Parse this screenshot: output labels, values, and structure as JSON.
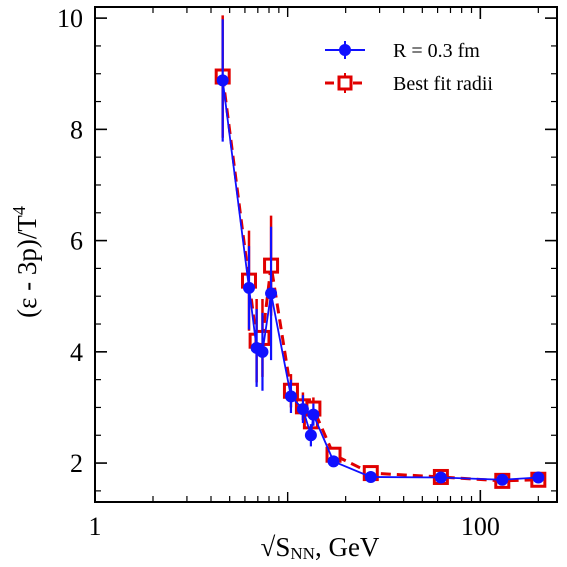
{
  "chart_data": {
    "type": "line",
    "xlabel": "√S",
    "xlabel_sub": "NN",
    "xlabel_suffix": ", GeV",
    "ylabel": "(ε - 3p)/T",
    "ylabel_sup": "4",
    "xscale": "log",
    "xlim": [
      1,
      250
    ],
    "ylim": [
      1.3,
      10.2
    ],
    "xticks": [
      {
        "value": 1,
        "label": "1"
      },
      {
        "value": 100,
        "label": "100"
      }
    ],
    "yticks": [
      {
        "value": 2,
        "label": "2"
      },
      {
        "value": 4,
        "label": "4"
      },
      {
        "value": 6,
        "label": "6"
      },
      {
        "value": 8,
        "label": "8"
      },
      {
        "value": 10,
        "label": "10"
      }
    ],
    "legend_position": "top-right",
    "series": [
      {
        "name": "R = 0.3 fm",
        "color": "#1010ff",
        "marker": "circle",
        "line": "solid",
        "points": [
          {
            "x": 4.6,
            "y": 8.88,
            "yerr": 1.1
          },
          {
            "x": 6.3,
            "y": 5.15,
            "yerr": 0.75
          },
          {
            "x": 6.9,
            "y": 4.07,
            "yerr": 0.7
          },
          {
            "x": 7.4,
            "y": 4.0,
            "yerr": 0.7
          },
          {
            "x": 8.2,
            "y": 5.05,
            "yerr": 1.2
          },
          {
            "x": 10.4,
            "y": 3.2,
            "yerr": 0.3
          },
          {
            "x": 12.0,
            "y": 2.97,
            "yerr": 0.25
          },
          {
            "x": 13.2,
            "y": 2.5,
            "yerr": 0.2
          },
          {
            "x": 13.6,
            "y": 2.87,
            "yerr": 0.2
          },
          {
            "x": 17.3,
            "y": 2.03,
            "yerr": 0.1
          },
          {
            "x": 27.0,
            "y": 1.75,
            "yerr": 0.08
          },
          {
            "x": 62.4,
            "y": 1.74,
            "yerr": 0.08
          },
          {
            "x": 130,
            "y": 1.7,
            "yerr": 0.06
          },
          {
            "x": 200,
            "y": 1.74,
            "yerr": 0.06
          }
        ]
      },
      {
        "name": "Best fit radii",
        "color": "#e00000",
        "marker": "square-open",
        "line": "dashed",
        "points": [
          {
            "x": 4.6,
            "y": 8.95,
            "yerr": 1.1
          },
          {
            "x": 6.3,
            "y": 5.28,
            "yerr": 0.9
          },
          {
            "x": 6.9,
            "y": 4.2,
            "yerr": 0.75
          },
          {
            "x": 7.4,
            "y": 4.25,
            "yerr": 0.7
          },
          {
            "x": 8.2,
            "y": 5.55,
            "yerr": 0.9
          },
          {
            "x": 10.4,
            "y": 3.3,
            "yerr": 0.3
          },
          {
            "x": 12.0,
            "y": 3.02,
            "yerr": 0.25
          },
          {
            "x": 13.2,
            "y": 2.75,
            "yerr": 0.2
          },
          {
            "x": 13.6,
            "y": 2.98,
            "yerr": 0.2
          },
          {
            "x": 17.3,
            "y": 2.15,
            "yerr": 0.12
          },
          {
            "x": 27.0,
            "y": 1.82,
            "yerr": 0.08
          },
          {
            "x": 62.4,
            "y": 1.75,
            "yerr": 0.08
          },
          {
            "x": 130,
            "y": 1.68,
            "yerr": 0.06
          },
          {
            "x": 200,
            "y": 1.7,
            "yerr": 0.06
          }
        ]
      }
    ]
  }
}
